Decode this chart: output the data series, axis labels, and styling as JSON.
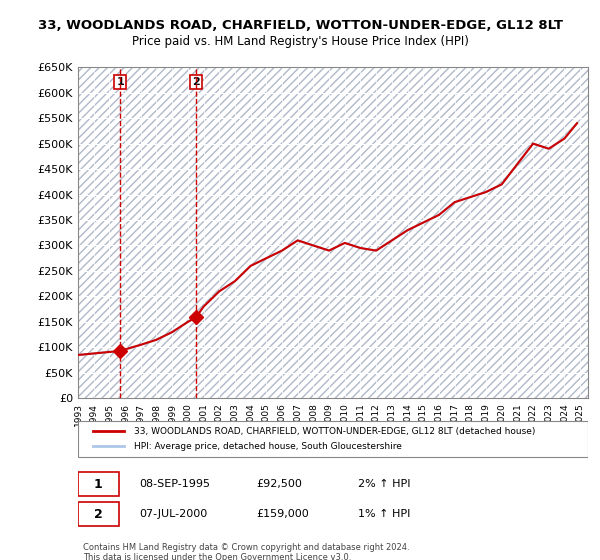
{
  "title": "33, WOODLANDS ROAD, CHARFIELD, WOTTON-UNDER-EDGE, GL12 8LT",
  "subtitle": "Price paid vs. HM Land Registry's House Price Index (HPI)",
  "ylim": [
    0,
    650000
  ],
  "yticks": [
    0,
    50000,
    100000,
    150000,
    200000,
    250000,
    300000,
    350000,
    400000,
    450000,
    500000,
    550000,
    600000,
    650000
  ],
  "xlim_start": 1993.0,
  "xlim_end": 2025.5,
  "hpi_color": "#aec6e8",
  "house_color": "#cc0000",
  "sale_points": [
    {
      "year": 1995.69,
      "price": 92500,
      "label": "1"
    },
    {
      "year": 2000.52,
      "price": 159000,
      "label": "2"
    }
  ],
  "annotation_rows": [
    {
      "num": "1",
      "date": "08-SEP-1995",
      "price": "£92,500",
      "change": "2% ↑ HPI"
    },
    {
      "num": "2",
      "date": "07-JUL-2000",
      "price": "£159,000",
      "change": "1% ↑ HPI"
    }
  ],
  "legend_line1": "33, WOODLANDS ROAD, CHARFIELD, WOTTON-UNDER-EDGE, GL12 8LT (detached house)",
  "legend_line2": "HPI: Average price, detached house, South Gloucestershire",
  "footer": "Contains HM Land Registry data © Crown copyright and database right 2024.\nThis data is licensed under the Open Government Licence v3.0.",
  "hpi_line_data_x": [
    1993.0,
    1994.0,
    1995.0,
    1995.69,
    1996.0,
    1997.0,
    1998.0,
    1999.0,
    2000.0,
    2000.52,
    2001.0,
    2002.0,
    2003.0,
    2004.0,
    2005.0,
    2006.0,
    2007.0,
    2008.0,
    2009.0,
    2010.0,
    2011.0,
    2012.0,
    2013.0,
    2014.0,
    2015.0,
    2016.0,
    2017.0,
    2018.0,
    2019.0,
    2020.0,
    2021.0,
    2022.0,
    2023.0,
    2024.0,
    2024.8
  ],
  "hpi_line_data_y": [
    85000,
    88000,
    91000,
    92500,
    96000,
    105000,
    115000,
    130000,
    150000,
    159000,
    180000,
    210000,
    230000,
    260000,
    275000,
    290000,
    310000,
    300000,
    290000,
    305000,
    295000,
    290000,
    310000,
    330000,
    345000,
    360000,
    385000,
    395000,
    405000,
    420000,
    460000,
    500000,
    490000,
    510000,
    540000
  ],
  "sale_vlines_color": "#cc0000"
}
